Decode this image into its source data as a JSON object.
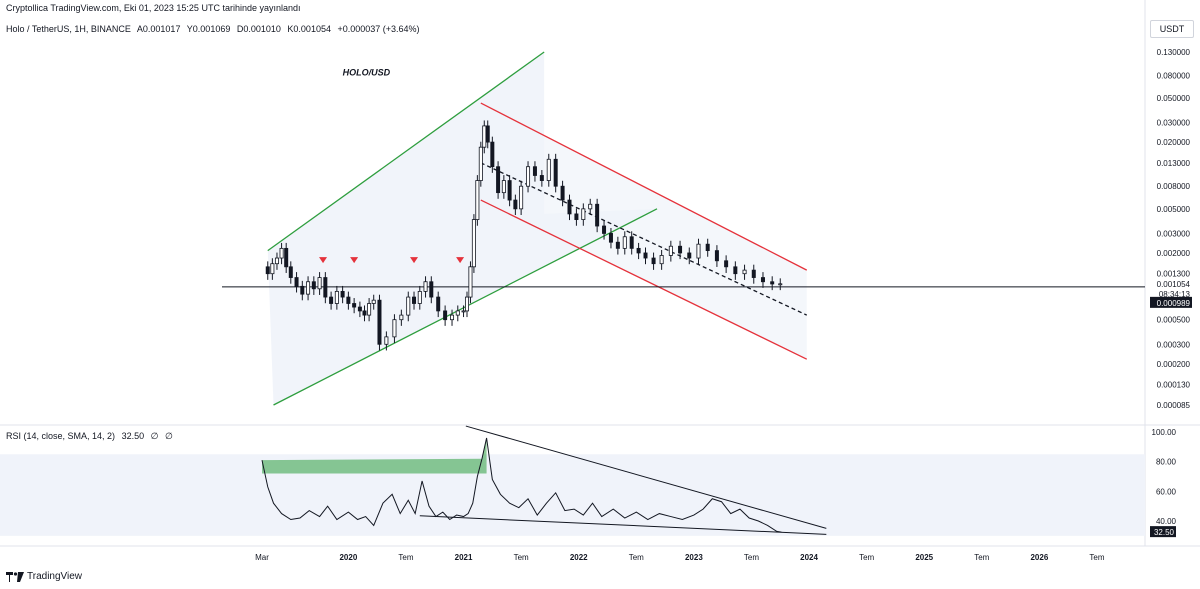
{
  "header": {
    "published": "Cryptollica TradingView.com, Eki 01, 2023 15:25 UTC tarihinde yayınlandı"
  },
  "legend": {
    "symbol": "Holo / TetherUS, 1H, BINANCE",
    "open": "A0.001017",
    "high": "Y0.001069",
    "low": "D0.001010",
    "close": "K0.001054",
    "change": "+0.000037 (+3.64%)"
  },
  "currency_button": "USDT",
  "rsi_legend": {
    "label": "RSI (14, close, SMA, 14, 2)",
    "value": "32.50",
    "extra1": "∅",
    "extra2": "∅"
  },
  "footer": {
    "brand": "TradingView",
    "logo_icon": "tradingview-logo-icon"
  },
  "colors": {
    "ascending_channel": "#2e9e3e",
    "descending_channel": "#e5323b",
    "candle": "#131722",
    "rsi_line": "#131722",
    "rsi_fill_overbought": "#2e9e3e",
    "channel_fill": "#f0f3fa",
    "pivot_marker": "#e5323b"
  },
  "chart_data": [
    {
      "type": "candlestick",
      "title": "HOLO/USD",
      "annotation": "HOLO/USD",
      "scale": "log",
      "price_axis": {
        "ticks": [
          {
            "label": "0.130000",
            "value": 0.13
          },
          {
            "label": "0.080000",
            "value": 0.08
          },
          {
            "label": "0.050000",
            "value": 0.05
          },
          {
            "label": "0.030000",
            "value": 0.03
          },
          {
            "label": "0.020000",
            "value": 0.02
          },
          {
            "label": "0.013000",
            "value": 0.013
          },
          {
            "label": "0.008000",
            "value": 0.008
          },
          {
            "label": "0.005000",
            "value": 0.005
          },
          {
            "label": "0.003000",
            "value": 0.003
          },
          {
            "label": "0.002000",
            "value": 0.002
          },
          {
            "label": "0.001300",
            "value": 0.0013
          },
          {
            "label": "0.000500",
            "value": 0.0005
          },
          {
            "label": "0.000300",
            "value": 0.0003
          },
          {
            "label": "0.000200",
            "value": 0.0002
          },
          {
            "label": "0.000130",
            "value": 0.00013
          },
          {
            "label": "0.000085",
            "value": 8.5e-05
          }
        ],
        "last_price": {
          "label": "0.001054",
          "value": 0.001054
        },
        "countdown": "08:34:13",
        "horizontal_line": {
          "label": "0.000989",
          "value": 0.000989
        }
      },
      "time_axis": [
        "Mar",
        "2020",
        "Tem",
        "2021",
        "Tem",
        "2022",
        "Tem",
        "2023",
        "Tem",
        "2024",
        "Tem",
        "2025",
        "Tem",
        "2026",
        "Tem"
      ],
      "x_domain": [
        2019.0,
        2026.7
      ],
      "series": {
        "x": [
          2019.25,
          2019.3,
          2019.34,
          2019.38,
          2019.42,
          2019.46,
          2019.5,
          2019.55,
          2019.6,
          2019.65,
          2019.7,
          2019.75,
          2019.8,
          2019.85,
          2019.9,
          2019.95,
          2020.0,
          2020.05,
          2020.1,
          2020.14,
          2020.18,
          2020.22,
          2020.27,
          2020.33,
          2020.4,
          2020.46,
          2020.52,
          2020.57,
          2020.62,
          2020.67,
          2020.72,
          2020.78,
          2020.84,
          2020.9,
          2020.95,
          2021.0,
          2021.03,
          2021.06,
          2021.09,
          2021.12,
          2021.15,
          2021.18,
          2021.21,
          2021.25,
          2021.3,
          2021.35,
          2021.4,
          2021.45,
          2021.5,
          2021.56,
          2021.62,
          2021.68,
          2021.74,
          2021.8,
          2021.86,
          2021.92,
          2021.98,
          2022.04,
          2022.1,
          2022.16,
          2022.22,
          2022.28,
          2022.34,
          2022.4,
          2022.46,
          2022.52,
          2022.58,
          2022.65,
          2022.72,
          2022.8,
          2022.88,
          2022.96,
          2023.04,
          2023.12,
          2023.2,
          2023.28,
          2023.36,
          2023.44,
          2023.52,
          2023.6,
          2023.68,
          2023.75
        ],
        "close": [
          0.0015,
          0.0013,
          0.0016,
          0.0018,
          0.0022,
          0.0015,
          0.0012,
          0.001,
          0.00085,
          0.0011,
          0.00095,
          0.0012,
          0.0008,
          0.0007,
          0.0009,
          0.0008,
          0.0007,
          0.00065,
          0.0006,
          0.00055,
          0.0007,
          0.00075,
          0.0003,
          0.00035,
          0.0005,
          0.00055,
          0.0008,
          0.0007,
          0.0009,
          0.0011,
          0.0008,
          0.0006,
          0.0005,
          0.00055,
          0.0006,
          0.0006,
          0.0008,
          0.0015,
          0.004,
          0.009,
          0.018,
          0.028,
          0.02,
          0.012,
          0.007,
          0.009,
          0.006,
          0.005,
          0.008,
          0.012,
          0.01,
          0.009,
          0.014,
          0.008,
          0.006,
          0.0045,
          0.004,
          0.005,
          0.0055,
          0.0035,
          0.003,
          0.0025,
          0.0022,
          0.0028,
          0.0022,
          0.002,
          0.0018,
          0.0016,
          0.0019,
          0.0023,
          0.002,
          0.0018,
          0.0024,
          0.0021,
          0.0017,
          0.0015,
          0.0013,
          0.0014,
          0.0012,
          0.0011,
          0.00105,
          0.001054
        ]
      },
      "markers": [
        {
          "type": "pivot-down-triangle",
          "x": 2019.78,
          "price": 0.0014
        },
        {
          "type": "pivot-down-triangle",
          "x": 2020.05,
          "price": 0.0014
        },
        {
          "type": "pivot-down-triangle",
          "x": 2020.57,
          "price": 0.0014
        },
        {
          "type": "pivot-down-triangle",
          "x": 2020.97,
          "price": 0.0014
        }
      ],
      "drawings": [
        {
          "type": "ascending-channel-upper",
          "x": [
            2019.3,
            2021.7
          ],
          "price": [
            0.0021,
            0.13
          ]
        },
        {
          "type": "ascending-channel-lower",
          "x": [
            2019.35,
            2022.68
          ],
          "price": [
            8.5e-05,
            0.005
          ]
        },
        {
          "type": "descending-channel-upper",
          "x": [
            2021.15,
            2023.98
          ],
          "price": [
            0.045,
            0.0014
          ]
        },
        {
          "type": "descending-channel-midline",
          "x": [
            2021.15,
            2023.98
          ],
          "price": [
            0.013,
            0.00055
          ]
        },
        {
          "type": "descending-channel-lower",
          "x": [
            2021.15,
            2023.98
          ],
          "price": [
            0.006,
            0.00022
          ]
        }
      ]
    },
    {
      "type": "line",
      "title": "RSI (14, close, SMA, 14, 2)",
      "y_axis": {
        "ticks": [
          "100.00",
          "80.00",
          "60.00",
          "40.00"
        ],
        "ylim": [
          30,
          100
        ]
      },
      "last_value": {
        "label": "32.50",
        "value": 32.5
      },
      "overbought_band": [
        30,
        85
      ],
      "series": {
        "x": [
          2019.25,
          2019.3,
          2019.35,
          2019.42,
          2019.5,
          2019.58,
          2019.66,
          2019.75,
          2019.82,
          2019.9,
          2020.0,
          2020.08,
          2020.15,
          2020.22,
          2020.3,
          2020.38,
          2020.45,
          2020.52,
          2020.58,
          2020.64,
          2020.7,
          2020.76,
          2020.82,
          2020.88,
          2020.94,
          2021.0,
          2021.04,
          2021.08,
          2021.12,
          2021.16,
          2021.2,
          2021.25,
          2021.32,
          2021.4,
          2021.48,
          2021.56,
          2021.64,
          2021.72,
          2021.8,
          2021.88,
          2021.96,
          2022.04,
          2022.12,
          2022.2,
          2022.3,
          2022.4,
          2022.5,
          2022.6,
          2022.7,
          2022.8,
          2022.9,
          2023.0,
          2023.08,
          2023.16,
          2023.24,
          2023.32,
          2023.4,
          2023.48,
          2023.56,
          2023.64,
          2023.72,
          2023.76
        ],
        "values": [
          81,
          63,
          52,
          45,
          41,
          42,
          47,
          43,
          50,
          41,
          46,
          41,
          43,
          37,
          52,
          58,
          45,
          54,
          45,
          67,
          50,
          43,
          46,
          41,
          44,
          43,
          45,
          52,
          70,
          82,
          96,
          68,
          58,
          52,
          49,
          55,
          44,
          52,
          59,
          47,
          48,
          44,
          52,
          43,
          48,
          42,
          46,
          41,
          45,
          43,
          41,
          44,
          48,
          55,
          53,
          45,
          48,
          42,
          40,
          37,
          33,
          32.5
        ]
      },
      "drawings": [
        {
          "type": "resistance-line",
          "x": [
            2021.02,
            2024.15
          ],
          "values": [
            104,
            35
          ]
        },
        {
          "type": "support-line",
          "x": [
            2020.62,
            2024.15
          ],
          "values": [
            43.5,
            31
          ]
        }
      ]
    }
  ]
}
